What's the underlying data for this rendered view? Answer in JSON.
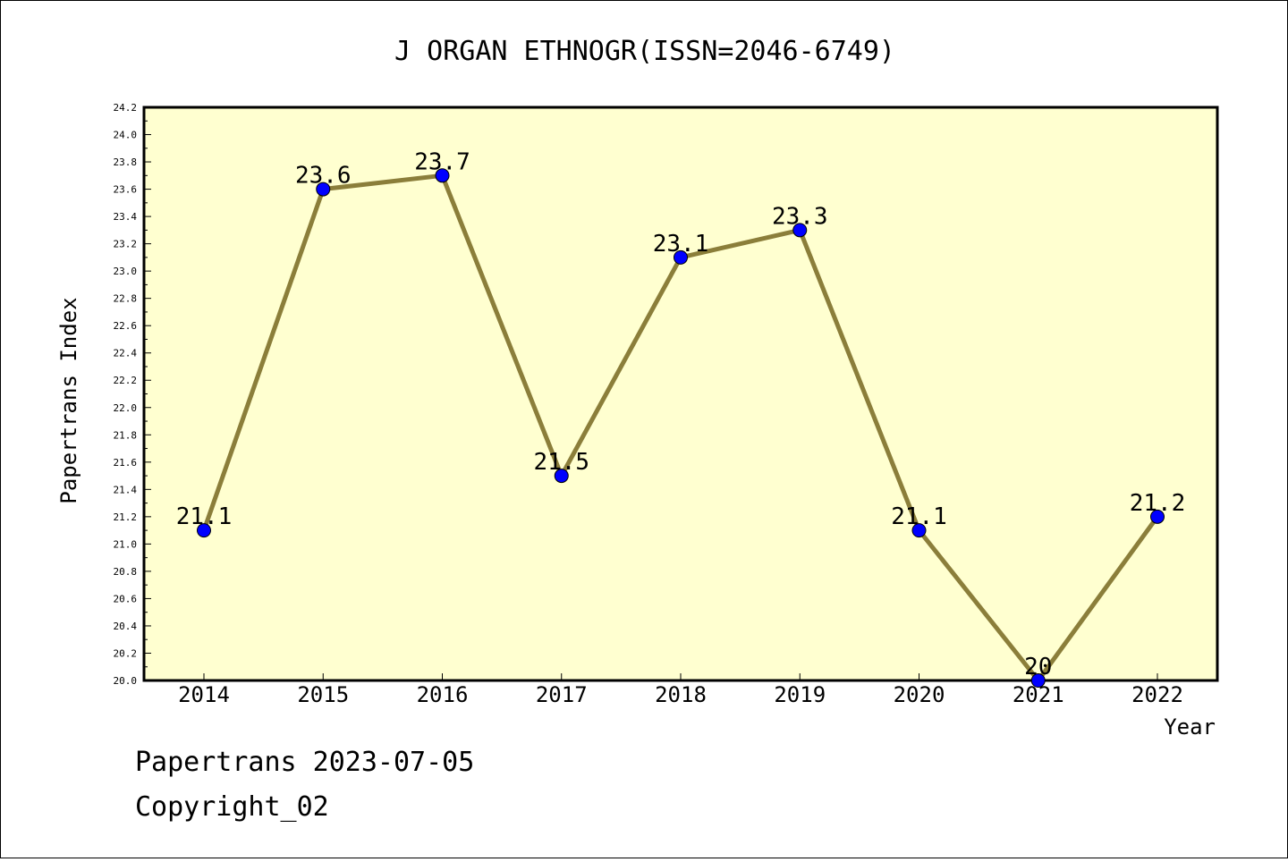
{
  "chart_data": {
    "type": "line",
    "title": "J ORGAN ETHNOGR(ISSN=2046-6749)",
    "xlabel": "Year",
    "ylabel": "Papertrans Index",
    "categories": [
      "2014",
      "2015",
      "2016",
      "2017",
      "2018",
      "2019",
      "2020",
      "2021",
      "2022"
    ],
    "values": [
      21.1,
      23.6,
      23.7,
      21.5,
      23.1,
      23.3,
      21.1,
      20.0,
      21.2
    ],
    "data_labels": [
      "21.1",
      "23.6",
      "23.7",
      "21.5",
      "23.1",
      "23.3",
      "21.1",
      "20",
      "21.2"
    ],
    "ylim": [
      20.0,
      24.2
    ],
    "y_ticks": [
      "20.0",
      "20.2",
      "20.4",
      "20.6",
      "20.8",
      "21.0",
      "21.2",
      "21.4",
      "21.6",
      "21.8",
      "22.0",
      "22.2",
      "22.4",
      "22.6",
      "22.8",
      "23.0",
      "23.2",
      "23.4",
      "23.6",
      "23.8",
      "24.0",
      "24.2"
    ],
    "grid": false,
    "legend": "none",
    "colors": {
      "plot_background": "#ffffd0",
      "line": "#8b7e3a",
      "marker": "#0000ff"
    }
  },
  "footer": {
    "stamp": "Papertrans 2023-07-05",
    "copyright": "Copyright_02"
  }
}
